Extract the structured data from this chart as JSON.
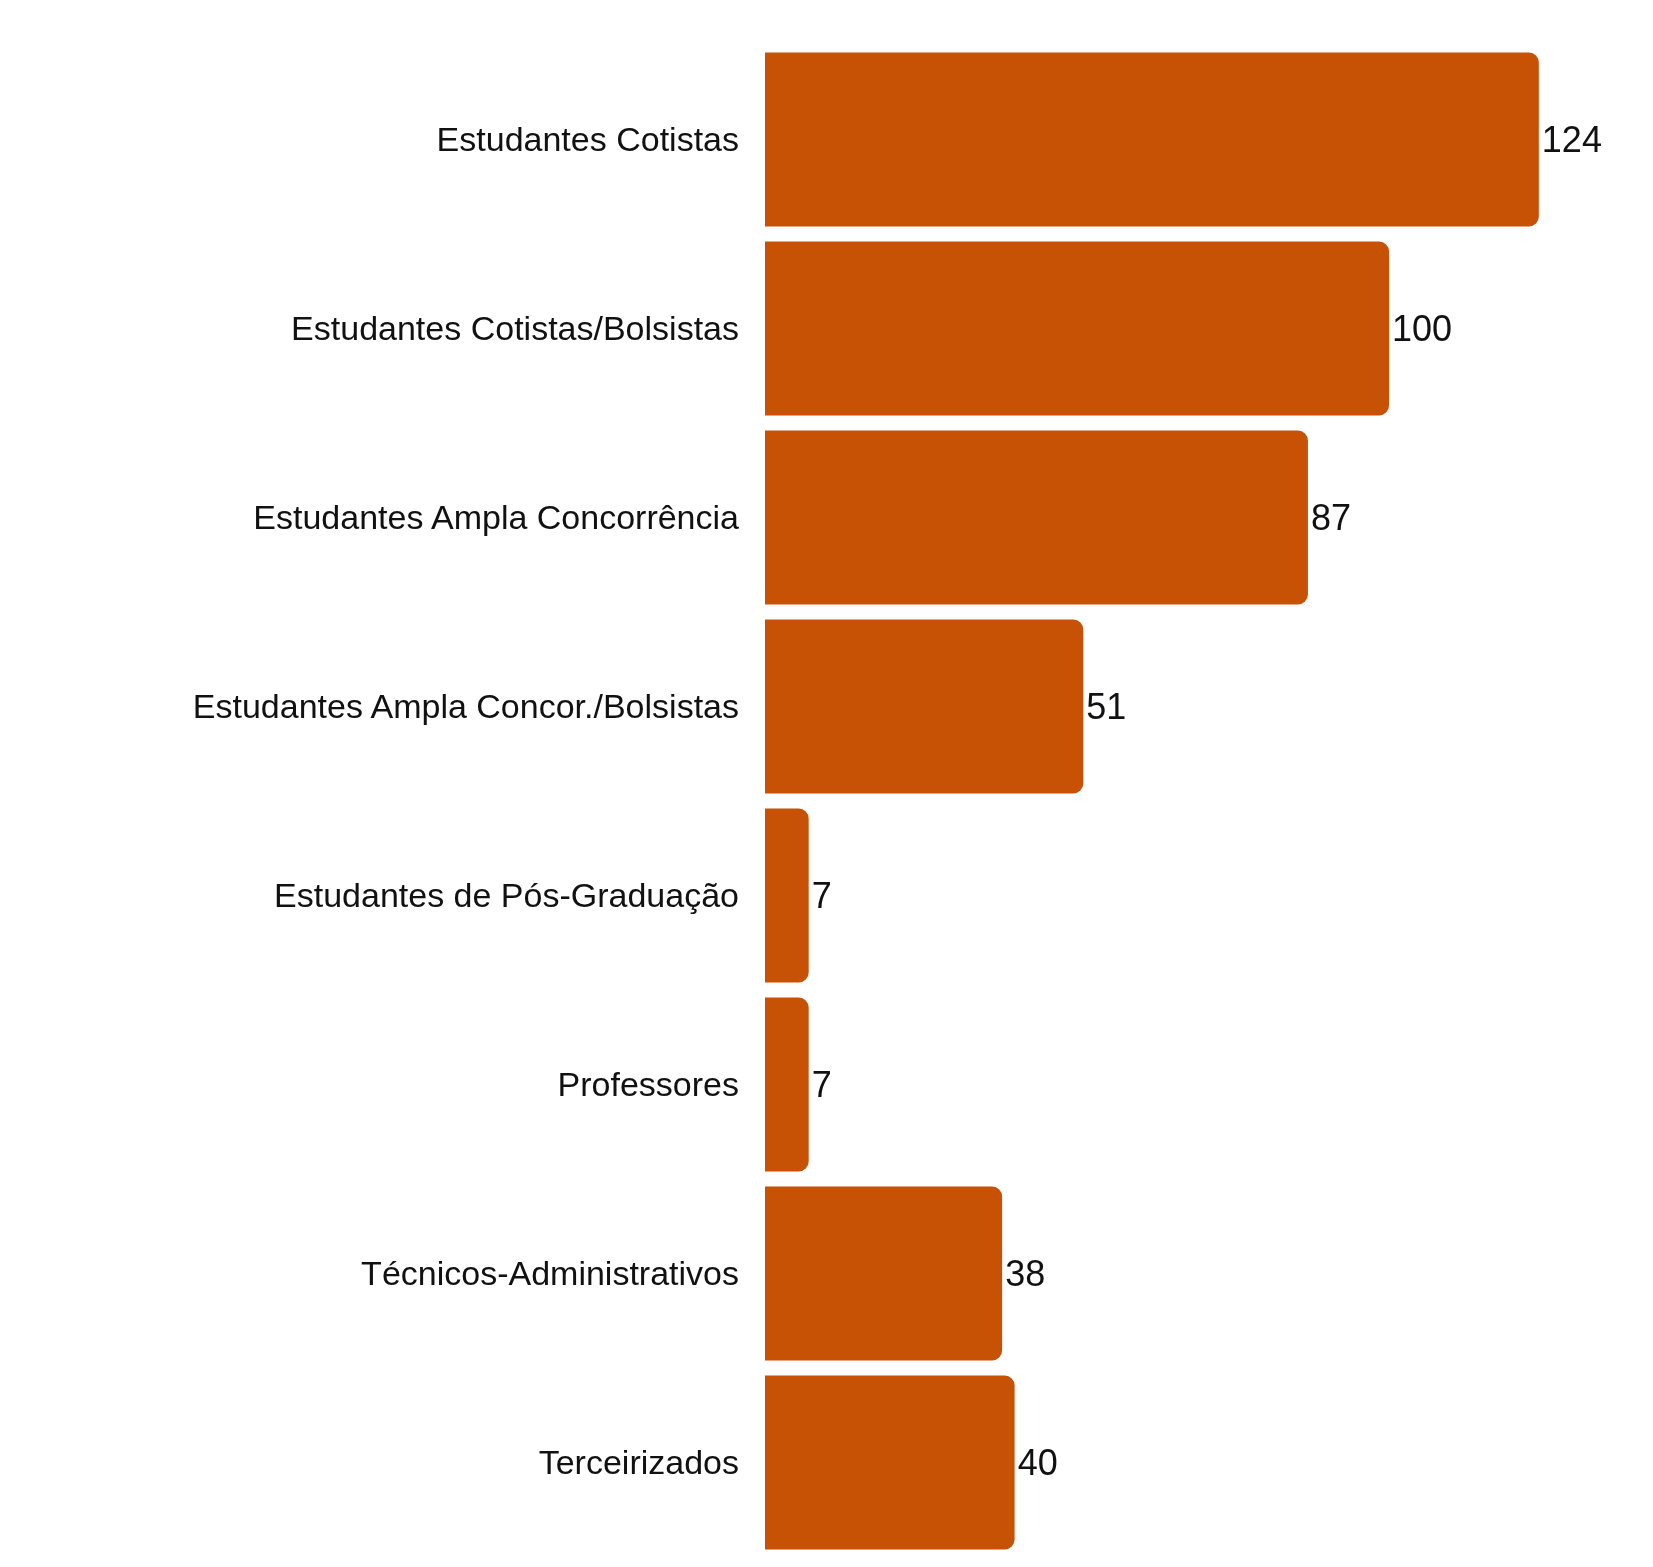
{
  "chart_data": {
    "type": "bar",
    "orientation": "horizontal",
    "data_labels": true,
    "color": "#c75105",
    "categories": [
      "Estudantes Cotistas",
      "Estudantes Cotistas/Bolsistas",
      "Estudantes Ampla Concorrência",
      "Estudantes Ampla Concor./Bolsistas",
      "Estudantes de Pós-Graduação",
      "Professores",
      "Técnicos-Administrativos",
      "Terceirizados"
    ],
    "values": [
      124,
      100,
      87,
      51,
      7,
      7,
      38,
      40
    ]
  }
}
